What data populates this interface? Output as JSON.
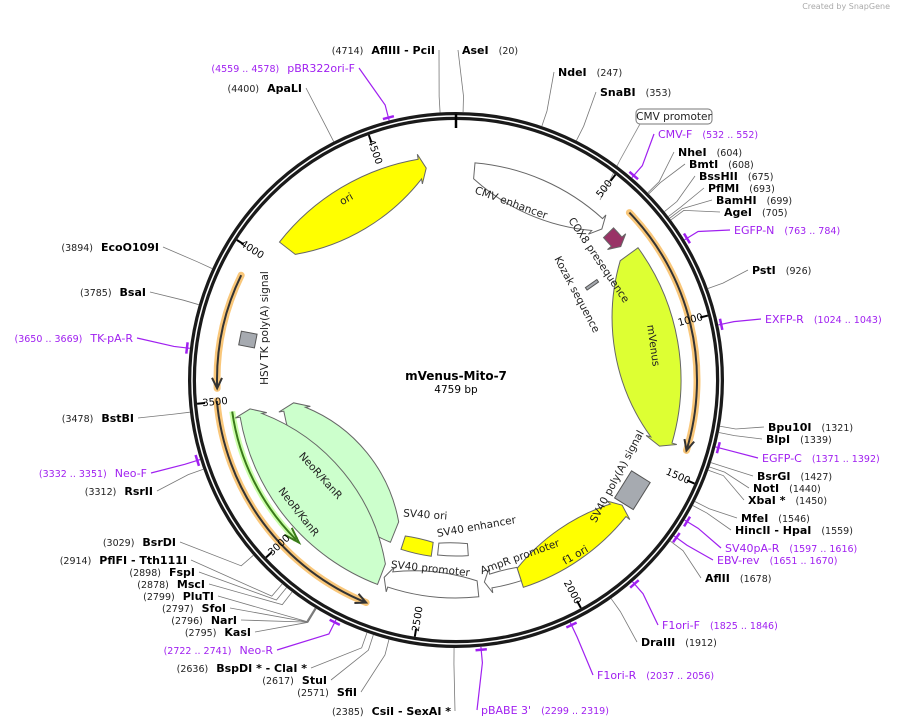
{
  "watermark": "Created by SnapGene",
  "map": {
    "name": "mVenus-Mito-7",
    "length": "4759 bp",
    "total_bp": 4759
  },
  "colors": {
    "backbone": "#1a1a1a",
    "primer": "#a020f0",
    "orf": "#f9c77a",
    "ori": "#ffff00",
    "mVenus": "#ddff33",
    "neo": "#ccffcc",
    "cox8": "#993366",
    "polyA": "#a6aab0",
    "promoter": "#ffffff"
  },
  "ticks": [
    "500",
    "1000",
    "1500",
    "2000",
    "2500",
    "3000",
    "3500",
    "4000",
    "4500"
  ],
  "features": [
    {
      "label": "CMV enhancer"
    },
    {
      "label": "CMV promoter"
    },
    {
      "label": "COX8 presequence"
    },
    {
      "label": "Kozak sequence"
    },
    {
      "label": "mVenus"
    },
    {
      "label": "SV40 poly(A) signal"
    },
    {
      "label": "f1 ori"
    },
    {
      "label": "AmpR promoter"
    },
    {
      "label": "SV40 promoter"
    },
    {
      "label": "SV40 enhancer"
    },
    {
      "label": "SV40 ori"
    },
    {
      "label": "NeoR/KanR"
    },
    {
      "label": "NeoR/KanR"
    },
    {
      "label": "HSV TK poly(A) signal"
    },
    {
      "label": "ori"
    }
  ],
  "sites": [
    {
      "name": "AseI",
      "pos": "(20)",
      "bp": 20,
      "type": "enzyme"
    },
    {
      "name": "NdeI",
      "pos": "(247)",
      "bp": 247,
      "type": "enzyme"
    },
    {
      "name": "SnaBI",
      "pos": "(353)",
      "bp": 353,
      "type": "enzyme"
    },
    {
      "name": "CMV-F",
      "pos": "(532 .. 552)",
      "bp": 542,
      "type": "primer"
    },
    {
      "name": "NheI",
      "pos": "(604)",
      "bp": 604,
      "type": "enzyme"
    },
    {
      "name": "BmtI",
      "pos": "(608)",
      "bp": 608,
      "type": "enzyme"
    },
    {
      "name": "BssHII",
      "pos": "(675)",
      "bp": 675,
      "type": "enzyme"
    },
    {
      "name": "PflMI",
      "pos": "(693)",
      "bp": 693,
      "type": "enzyme"
    },
    {
      "name": "BamHI",
      "pos": "(699)",
      "bp": 699,
      "type": "enzyme"
    },
    {
      "name": "AgeI",
      "pos": "(705)",
      "bp": 705,
      "type": "enzyme"
    },
    {
      "name": "EGFP-N",
      "pos": "(763 .. 784)",
      "bp": 773,
      "type": "primer"
    },
    {
      "name": "PstI",
      "pos": "(926)",
      "bp": 926,
      "type": "enzyme"
    },
    {
      "name": "EXFP-R",
      "pos": "(1024 .. 1043)",
      "bp": 1033,
      "type": "primer"
    },
    {
      "name": "Bpu10I",
      "pos": "(1321)",
      "bp": 1321,
      "type": "enzyme"
    },
    {
      "name": "BlpI",
      "pos": "(1339)",
      "bp": 1339,
      "type": "enzyme"
    },
    {
      "name": "EGFP-C",
      "pos": "(1371 .. 1392)",
      "bp": 1381,
      "type": "primer"
    },
    {
      "name": "BsrGI",
      "pos": "(1427)",
      "bp": 1427,
      "type": "enzyme"
    },
    {
      "name": "NotI",
      "pos": "(1440)",
      "bp": 1440,
      "type": "enzyme"
    },
    {
      "name": "XbaI *",
      "pos": "(1450)",
      "bp": 1450,
      "type": "enzyme"
    },
    {
      "name": "MfeI",
      "pos": "(1546)",
      "bp": 1546,
      "type": "enzyme"
    },
    {
      "name": "HincII  - HpaI",
      "pos": "(1559)",
      "bp": 1559,
      "type": "enzyme"
    },
    {
      "name": "SV40pA-R",
      "pos": "(1597 .. 1616)",
      "bp": 1606,
      "type": "primer"
    },
    {
      "name": "EBV-rev",
      "pos": "(1651 .. 1670)",
      "bp": 1660,
      "type": "primer"
    },
    {
      "name": "AflII",
      "pos": "(1678)",
      "bp": 1678,
      "type": "enzyme"
    },
    {
      "name": "F1ori-F",
      "pos": "(1825 .. 1846)",
      "bp": 1835,
      "type": "primer"
    },
    {
      "name": "DraIII",
      "pos": "(1912)",
      "bp": 1912,
      "type": "enzyme"
    },
    {
      "name": "F1ori-R",
      "pos": "(2037 .. 2056)",
      "bp": 2046,
      "type": "primer"
    },
    {
      "name": "pBABE 3'",
      "pos": "(2299 .. 2319)",
      "bp": 2309,
      "type": "primer"
    },
    {
      "name": "CsiI  - SexAI *",
      "pos": "(2385)",
      "bp": 2385,
      "type": "enzyme"
    },
    {
      "name": "SfiI",
      "pos": "(2571)",
      "bp": 2571,
      "type": "enzyme"
    },
    {
      "name": "StuI",
      "pos": "(2617)",
      "bp": 2617,
      "type": "enzyme"
    },
    {
      "name": "BspDI *  - ClaI *",
      "pos": "(2636)",
      "bp": 2636,
      "type": "enzyme"
    },
    {
      "name": "Neo-R",
      "pos": "(2722 .. 2741)",
      "bp": 2731,
      "type": "primer"
    },
    {
      "name": "KasI",
      "pos": "(2795)",
      "bp": 2795,
      "type": "enzyme"
    },
    {
      "name": "NarI",
      "pos": "(2796)",
      "bp": 2796,
      "type": "enzyme"
    },
    {
      "name": "SfoI",
      "pos": "(2797)",
      "bp": 2797,
      "type": "enzyme"
    },
    {
      "name": "PluTI",
      "pos": "(2799)",
      "bp": 2799,
      "type": "enzyme"
    },
    {
      "name": "MscI",
      "pos": "(2878)",
      "bp": 2878,
      "type": "enzyme"
    },
    {
      "name": "FspI",
      "pos": "(2898)",
      "bp": 2898,
      "type": "enzyme"
    },
    {
      "name": "PflFI  - Tth111I",
      "pos": "(2914)",
      "bp": 2914,
      "type": "enzyme"
    },
    {
      "name": "BsrDI",
      "pos": "(3029)",
      "bp": 3029,
      "type": "enzyme"
    },
    {
      "name": "RsrII",
      "pos": "(3312)",
      "bp": 3312,
      "type": "enzyme"
    },
    {
      "name": "Neo-F",
      "pos": "(3332 .. 3351)",
      "bp": 3341,
      "type": "primer"
    },
    {
      "name": "BstBI",
      "pos": "(3478)",
      "bp": 3478,
      "type": "enzyme"
    },
    {
      "name": "TK-pA-R",
      "pos": "(3650 .. 3669)",
      "bp": 3659,
      "type": "primer"
    },
    {
      "name": "BsaI",
      "pos": "(3785)",
      "bp": 3785,
      "type": "enzyme"
    },
    {
      "name": "EcoO109I",
      "pos": "(3894)",
      "bp": 3894,
      "type": "enzyme"
    },
    {
      "name": "ApaLI",
      "pos": "(4400)",
      "bp": 4400,
      "type": "enzyme"
    },
    {
      "name": "pBR322ori-F",
      "pos": "(4559 .. 4578)",
      "bp": 4568,
      "type": "primer"
    },
    {
      "name": "AflIII  - PciI",
      "pos": "(4714)",
      "bp": 4714,
      "type": "enzyme"
    }
  ]
}
